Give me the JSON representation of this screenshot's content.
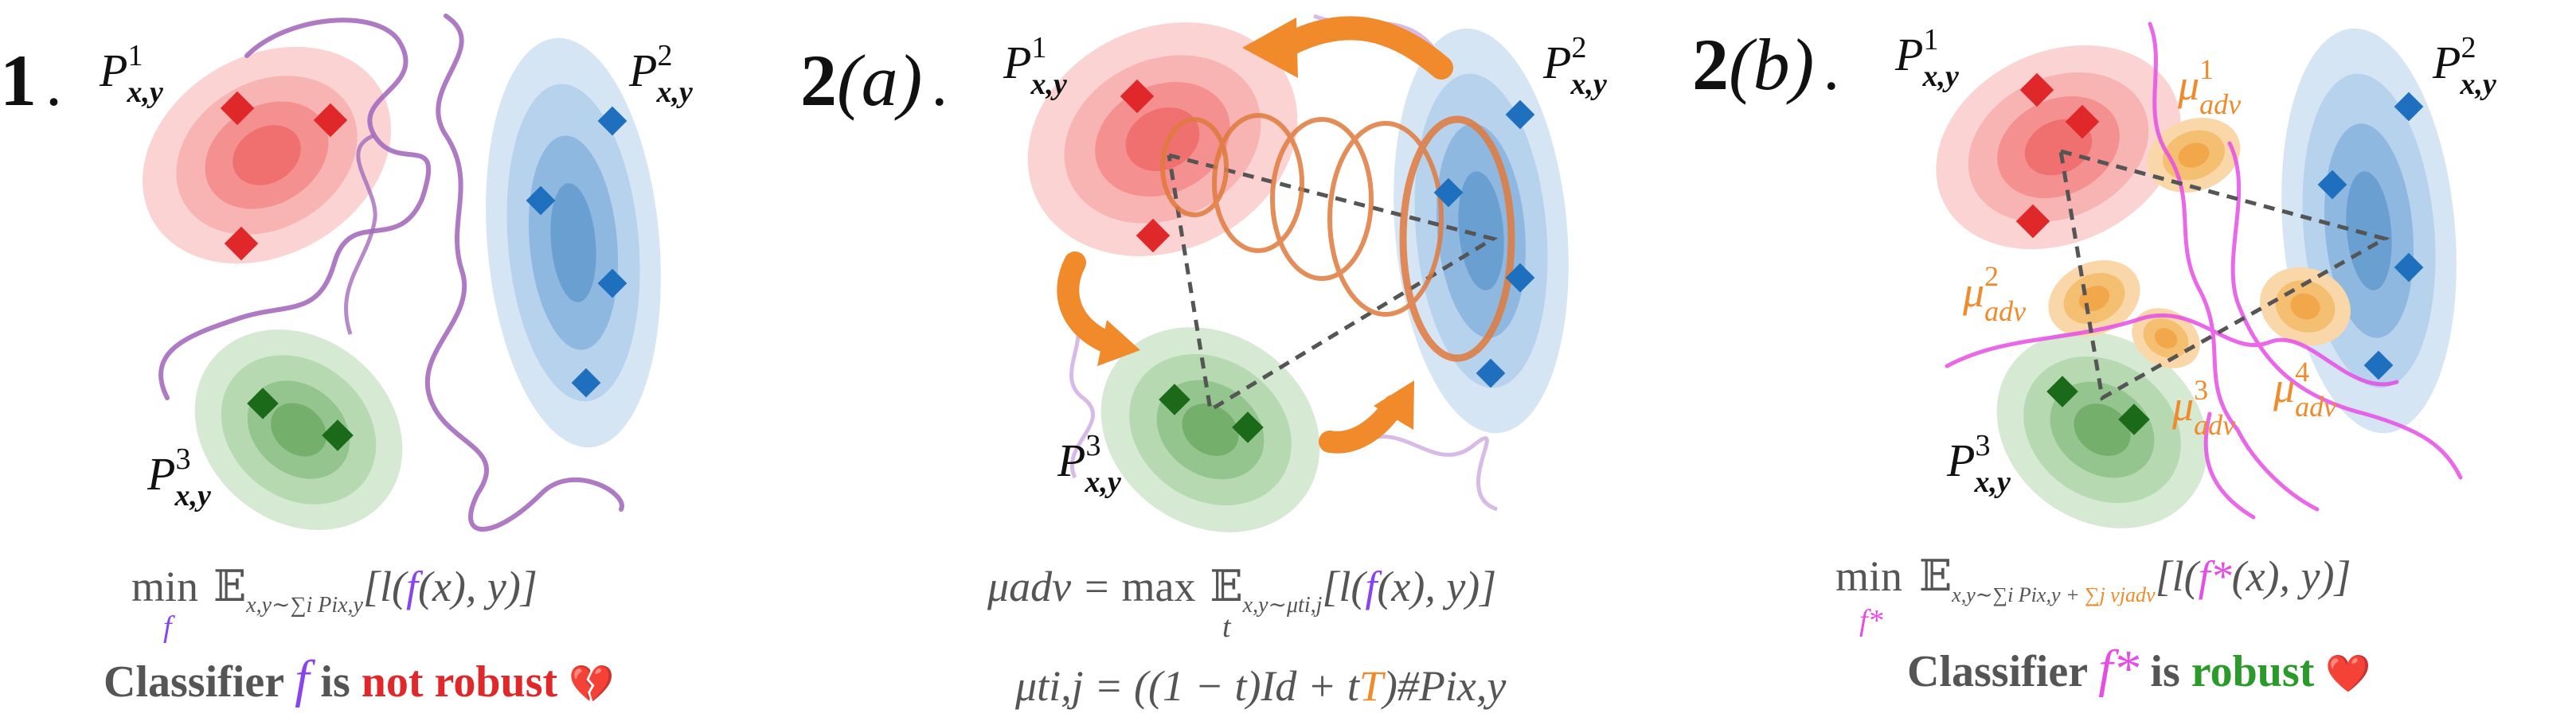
{
  "panels": [
    {
      "label_num": "1",
      "label_sub": "",
      "label_dot": ".",
      "dist": [
        {
          "sym": "P",
          "sup": "1",
          "sub": "x,y"
        },
        {
          "sym": "P",
          "sup": "2",
          "sub": "x,y"
        },
        {
          "sym": "P",
          "sup": "3",
          "sub": "x,y"
        }
      ],
      "formula_1": {
        "op": "min",
        "op_sub": "f",
        "E": "𝔼",
        "E_sub": "x,y∼∑i Pix,y",
        "body_pre": "[l(",
        "f": "f",
        "body_post": "(x), y)]"
      },
      "caption": {
        "pre": "Classifier ",
        "f": "f",
        "mid": " is ",
        "status": "not robust",
        "emoji": "💔"
      }
    },
    {
      "label_num": "2",
      "label_sub": "(a)",
      "label_dot": ".",
      "dist": [
        {
          "sym": "P",
          "sup": "1",
          "sub": "x,y"
        },
        {
          "sym": "P",
          "sup": "2",
          "sub": "x,y"
        },
        {
          "sym": "P",
          "sup": "3",
          "sub": "x,y"
        }
      ],
      "formula_1": {
        "lhs": "μadv = ",
        "op": "max",
        "op_sub": "t",
        "E": "𝔼",
        "E_sub": "x,y∼μti,j",
        "body_pre": "[l(",
        "f": "f",
        "body_post": "(x), y)]"
      },
      "formula_2": {
        "lhs": "μti,j = ((1 − t)Id + t",
        "T": "T",
        "rhs": ")#Pix,y"
      }
    },
    {
      "label_num": "2",
      "label_sub": "(b)",
      "label_dot": ".",
      "dist": [
        {
          "sym": "P",
          "sup": "1",
          "sub": "x,y"
        },
        {
          "sym": "P",
          "sup": "2",
          "sub": "x,y"
        },
        {
          "sym": "P",
          "sup": "3",
          "sub": "x,y"
        }
      ],
      "adv": [
        {
          "sym": "μ",
          "sup": "1",
          "sub": "adv"
        },
        {
          "sym": "μ",
          "sup": "2",
          "sub": "adv"
        },
        {
          "sym": "μ",
          "sup": "3",
          "sub": "adv"
        },
        {
          "sym": "μ",
          "sup": "4",
          "sub": "adv"
        }
      ],
      "formula_1": {
        "op": "min",
        "op_sub": "f*",
        "E": "𝔼",
        "E_sub_a": "x,y∼∑i Pix,y + ",
        "E_sub_b": "∑j νjadv",
        "body_pre": "[l(",
        "f": "f*",
        "body_post": "(x), y)]"
      },
      "caption": {
        "pre": "Classifier ",
        "f": "f*",
        "mid": " is ",
        "status": "robust",
        "emoji": "❤️"
      }
    }
  ],
  "colors": {
    "red": "#e0272a",
    "blue": "#1f6fbf",
    "green": "#1a6a1a",
    "purple": "#9a5bb5",
    "magenta": "#e64ce6",
    "orange": "#f08a2a",
    "violet": "#8844ee",
    "text_gray": "#555555",
    "robust_green": "#2a9a2a",
    "not_robust_red": "#e0272a"
  }
}
